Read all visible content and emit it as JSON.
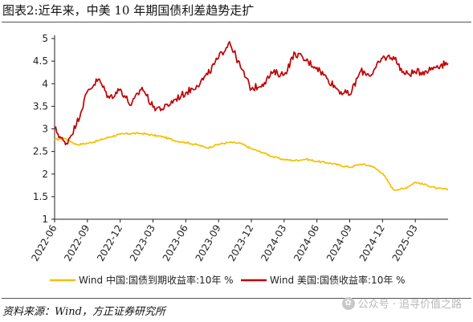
{
  "page": {
    "title": "图表2:近年来，中美 10 年期国债利差趋势走扩",
    "source": "资料来源：Wind，方正证券研究所",
    "watermark": "公众号 · 追寻价值之路"
  },
  "chart_data": {
    "type": "line",
    "title": "",
    "xlabel": "",
    "ylabel": "",
    "ylim": [
      1,
      5
    ],
    "y_ticks": [
      "1",
      "1.5",
      "2",
      "2.5",
      "3",
      "3.5",
      "4",
      "4.5",
      "5"
    ],
    "x_ticks": [
      "2022-06",
      "2022-09",
      "2022-12",
      "2023-03",
      "2023-06",
      "2023-09",
      "2023-12",
      "2024-03",
      "2024-06",
      "2024-09",
      "2024-12",
      "2025-03"
    ],
    "x_range": [
      "2022-06",
      "2025-06"
    ],
    "grid": false,
    "legend_position": "bottom",
    "colors": {
      "china": "#F5C000",
      "us": "#C00000"
    },
    "series": [
      {
        "name": "Wind 中国:国债到期收益率:10年 %",
        "x": [
          "2022-06",
          "2022-07",
          "2022-08",
          "2022-09",
          "2022-10",
          "2022-11",
          "2022-12",
          "2023-01",
          "2023-02",
          "2023-03",
          "2023-04",
          "2023-05",
          "2023-06",
          "2023-07",
          "2023-08",
          "2023-09",
          "2023-10",
          "2023-11",
          "2023-12",
          "2024-01",
          "2024-02",
          "2024-03",
          "2024-04",
          "2024-05",
          "2024-06",
          "2024-07",
          "2024-08",
          "2024-09",
          "2024-10",
          "2024-11",
          "2024-12",
          "2025-01",
          "2025-02",
          "2025-03",
          "2025-04",
          "2025-05",
          "2025-06"
        ],
        "values": [
          2.76,
          2.79,
          2.65,
          2.68,
          2.74,
          2.82,
          2.88,
          2.9,
          2.9,
          2.86,
          2.82,
          2.74,
          2.7,
          2.65,
          2.58,
          2.66,
          2.7,
          2.68,
          2.56,
          2.48,
          2.38,
          2.32,
          2.3,
          2.33,
          2.28,
          2.25,
          2.2,
          2.15,
          2.22,
          2.18,
          2.02,
          1.65,
          1.68,
          1.82,
          1.76,
          1.68,
          1.66
        ]
      },
      {
        "name": "Wind 美国:国债收益率:10年 %",
        "x": [
          "2022-06",
          "2022-07",
          "2022-08",
          "2022-09",
          "2022-10",
          "2022-11",
          "2022-12",
          "2023-01",
          "2023-02",
          "2023-03",
          "2023-04",
          "2023-05",
          "2023-06",
          "2023-07",
          "2023-08",
          "2023-09",
          "2023-10",
          "2023-11",
          "2023-12",
          "2024-01",
          "2024-02",
          "2024-03",
          "2024-04",
          "2024-05",
          "2024-06",
          "2024-07",
          "2024-08",
          "2024-09",
          "2024-10",
          "2024-11",
          "2024-12",
          "2025-01",
          "2025-02",
          "2025-03",
          "2025-04",
          "2025-05",
          "2025-06"
        ],
        "values": [
          3.01,
          2.65,
          3.1,
          3.83,
          4.1,
          3.68,
          3.88,
          3.52,
          3.92,
          3.48,
          3.45,
          3.65,
          3.8,
          3.96,
          4.2,
          4.57,
          4.93,
          4.37,
          3.88,
          3.99,
          4.25,
          4.2,
          4.68,
          4.51,
          4.36,
          4.1,
          3.85,
          3.75,
          4.28,
          4.2,
          4.57,
          4.6,
          4.21,
          4.25,
          4.28,
          4.4,
          4.45
        ]
      }
    ]
  }
}
